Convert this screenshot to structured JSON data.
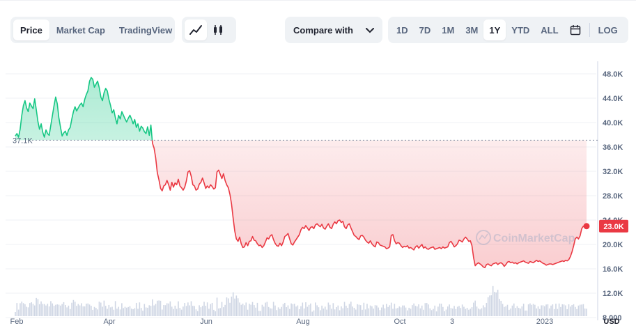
{
  "tabs": [
    {
      "label": "Price",
      "active": true
    },
    {
      "label": "Market Cap",
      "active": false
    },
    {
      "label": "TradingView",
      "active": false
    }
  ],
  "chart_type_icons": [
    {
      "icon": "line-chart-icon",
      "active": true
    },
    {
      "icon": "candlestick-icon",
      "active": false
    }
  ],
  "compare": {
    "label": "Compare with",
    "icon": "chevron-down-icon"
  },
  "ranges": [
    {
      "label": "1D",
      "active": false
    },
    {
      "label": "7D",
      "active": false
    },
    {
      "label": "1M",
      "active": false
    },
    {
      "label": "3M",
      "active": false
    },
    {
      "label": "1Y",
      "active": true
    },
    {
      "label": "YTD",
      "active": false
    },
    {
      "label": "ALL",
      "active": false
    }
  ],
  "calendar_icon": "calendar-icon",
  "log_label": "LOG",
  "colors": {
    "up": "#16c784",
    "down": "#ea3943",
    "grid": "#eff2f5",
    "axis_text": "#58667e"
  },
  "chart_data": {
    "type": "line",
    "x_ticks": [
      "Feb",
      "Apr",
      "Jun",
      "Aug",
      "Oct",
      "3",
      "2023"
    ],
    "y_ticks": [
      "48.0K",
      "44.0K",
      "40.0K",
      "36.0K",
      "32.0K",
      "28.0K",
      "24.0K",
      "20.0K",
      "16.0K",
      "12.0K",
      "8,000"
    ],
    "y_unit": "USD",
    "ylim": [
      8000,
      50000
    ],
    "baseline": {
      "value": 37100,
      "label": "37.1K"
    },
    "current": {
      "value": 23000,
      "label": "23.0K"
    },
    "watermark": "CoinMarketCap",
    "series": [
      {
        "values": [
          37800,
          38200,
          37600,
          38900,
          41200,
          42800,
          43600,
          42400,
          41800,
          43200,
          42700,
          42300,
          43900,
          42100,
          40200,
          38900,
          39800,
          38400,
          37600,
          38800,
          38200,
          37900,
          39600,
          41200,
          42800,
          44200,
          43100,
          40800,
          39200,
          37800,
          38300,
          38600,
          37900,
          38800,
          39200,
          40600,
          41800,
          42600,
          41900,
          42400,
          42900,
          43200,
          42600,
          43800,
          44600,
          45200,
          46800,
          47400,
          47100,
          45800,
          46300,
          46800,
          45700,
          44200,
          43600,
          44900,
          45600,
          45200,
          43800,
          42800,
          41600,
          42100,
          40800,
          39800,
          41200,
          40600,
          41800,
          41200,
          40600,
          40100,
          40700,
          41200,
          40600,
          39800,
          40500,
          39200,
          39800,
          38600,
          39400,
          39100,
          38500,
          38200,
          39300,
          37900,
          39600,
          36600,
          35800,
          34200,
          31800,
          30600,
          29200,
          28800,
          29600,
          29800,
          30500,
          29800,
          28900,
          30200,
          29400,
          30100,
          29800,
          30700,
          29600,
          29300,
          28900,
          29400,
          30400,
          31900,
          32100,
          31200,
          29800,
          29600,
          28900,
          29100,
          29900,
          30200,
          30900,
          30100,
          29200,
          29600,
          29300,
          29800,
          29500,
          29100,
          29300,
          31900,
          32200,
          31500,
          30800,
          31600,
          30500,
          29800,
          29300,
          28200,
          26600,
          24300,
          22200,
          20900,
          20500,
          21200,
          20100,
          19500,
          19600,
          20300,
          19800,
          20500,
          20600,
          21300,
          20700,
          20600,
          20100,
          19800,
          19900,
          19500,
          19800,
          20400,
          21100,
          20900,
          21400,
          21600,
          20800,
          20200,
          19800,
          19700,
          20200,
          19800,
          20400,
          21300,
          21500,
          21800,
          20900,
          20100,
          19900,
          20400,
          20800,
          21200,
          21600,
          22400,
          22800,
          22600,
          23100,
          22700,
          22300,
          22800,
          22900,
          22600,
          23200,
          23400,
          23100,
          22900,
          23300,
          22700,
          22500,
          23000,
          23400,
          22800,
          22600,
          23300,
          23700,
          23400,
          23900,
          24000,
          23600,
          23800,
          22900,
          22600,
          23200,
          23400,
          22700,
          22100,
          21500,
          21300,
          21000,
          20800,
          21400,
          21500,
          21200,
          20700,
          20400,
          20200,
          20600,
          20100,
          19800,
          19600,
          20400,
          20300,
          19900,
          19800,
          19700,
          19600,
          19300,
          19400,
          19600,
          21500,
          21600,
          20600,
          20100,
          20300,
          20200,
          19800,
          19500,
          19700,
          19600,
          19800,
          19400,
          19500,
          19300,
          19100,
          19600,
          19800,
          19400,
          19700,
          20000,
          19400,
          19600,
          19300,
          19200,
          19400,
          19500,
          19600,
          19200,
          19300,
          19400,
          19500,
          19300,
          19600,
          19400,
          19500,
          19600,
          20300,
          20500,
          20100,
          19600,
          19800,
          20100,
          20700,
          20600,
          20400,
          20900,
          21200,
          20900,
          20500,
          20600,
          19800,
          17800,
          16500,
          16800,
          17000,
          16800,
          16600,
          16300,
          16200,
          16700,
          16800,
          16600,
          16500,
          16800,
          16900,
          17000,
          16700,
          16900,
          17000,
          16800,
          16400,
          16700,
          17100,
          17200,
          17000,
          17100,
          16900,
          17000,
          16800,
          17000,
          17100,
          17200,
          17300,
          17100,
          17000,
          16900,
          17200,
          17100,
          17000,
          17200,
          17400,
          17200,
          17300,
          17100,
          16900,
          16800,
          16600,
          16700,
          16800,
          16800,
          16700,
          16800,
          16900,
          17000,
          17100,
          17200,
          17300,
          17200,
          17400,
          17300,
          17500,
          18000,
          18800,
          19800,
          20900,
          21200,
          20900,
          21400,
          22600,
          23000,
          22900,
          23000
        ]
      }
    ]
  }
}
